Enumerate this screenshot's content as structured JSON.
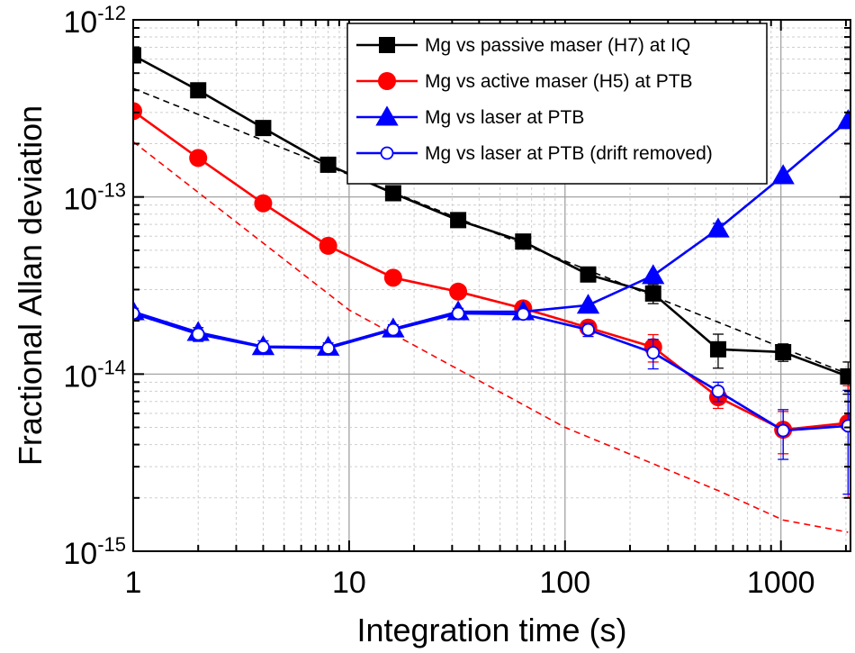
{
  "chart_data": {
    "type": "line",
    "title": "",
    "xlabel": "Integration time (s)",
    "ylabel": "Fractional Allan deviation",
    "xscale": "log",
    "yscale": "log",
    "xlim": [
      1,
      2100
    ],
    "ylim": [
      1e-15,
      1e-12
    ],
    "grid": true,
    "legend_position": "top-right",
    "x_ticks": [
      {
        "value": 1,
        "label": "1"
      },
      {
        "value": 10,
        "label": "10"
      },
      {
        "value": 100,
        "label": "100"
      },
      {
        "value": 1000,
        "label": "1000"
      }
    ],
    "y_ticks": [
      {
        "value": 1e-15,
        "base": "10",
        "exp": "-15"
      },
      {
        "value": 1e-14,
        "base": "10",
        "exp": "-14"
      },
      {
        "value": 1e-13,
        "base": "10",
        "exp": "-13"
      },
      {
        "value": 1e-12,
        "base": "10",
        "exp": "-12"
      }
    ],
    "series": [
      {
        "name": "Mg vs passive maser (H7) at IQ",
        "color": "#000000",
        "marker": "square-filled",
        "x": [
          1,
          2,
          4,
          8,
          16,
          32,
          64,
          128,
          256,
          512,
          1024,
          2048
        ],
        "y": [
          6.3e-13,
          4e-13,
          2.45e-13,
          1.52e-13,
          1.05e-13,
          7.4e-14,
          5.6e-14,
          3.65e-14,
          2.85e-14,
          1.38e-14,
          1.33e-14,
          9.7e-15
        ],
        "err": [
          0,
          0,
          0,
          0,
          0,
          0,
          0,
          0,
          3.5e-15,
          3e-15,
          1.5e-15,
          2e-15
        ]
      },
      {
        "name": "Mg vs active maser (H5) at PTB",
        "color": "#ff0000",
        "marker": "circle-filled",
        "x": [
          1,
          2,
          4,
          8,
          16,
          32,
          64,
          128,
          256,
          512,
          1024,
          2048
        ],
        "y": [
          3.05e-13,
          1.66e-13,
          9.2e-14,
          5.3e-14,
          3.5e-14,
          2.92e-14,
          2.35e-14,
          1.83e-14,
          1.42e-14,
          7.4e-15,
          4.85e-15,
          5.3e-15
        ],
        "err": [
          0,
          0,
          0,
          0,
          0,
          0,
          1e-15,
          1.5e-15,
          2.5e-15,
          1e-15,
          1.3e-15,
          3.3e-15
        ]
      },
      {
        "name": "Mg vs laser at PTB",
        "color": "#0000ff",
        "marker": "triangle-filled",
        "x": [
          1,
          2,
          4,
          8,
          16,
          32,
          64,
          128,
          256,
          512,
          1024,
          2048
        ],
        "y": [
          2.25e-14,
          1.72e-14,
          1.43e-14,
          1.42e-14,
          1.8e-14,
          2.25e-14,
          2.25e-14,
          2.45e-14,
          3.6e-14,
          6.6e-14,
          1.32e-13,
          2.7e-13
        ],
        "err": [
          0,
          0,
          0,
          0,
          0,
          0,
          0,
          0,
          0,
          5e-15,
          0,
          0
        ]
      },
      {
        "name": "Mg vs laser at PTB (drift removed)",
        "color": "#0000ff",
        "marker": "circle-open",
        "x": [
          1,
          2,
          4,
          8,
          16,
          32,
          64,
          128,
          256,
          512,
          1024,
          2048
        ],
        "y": [
          2.2e-14,
          1.68e-14,
          1.42e-14,
          1.4e-14,
          1.78e-14,
          2.2e-14,
          2.18e-14,
          1.78e-14,
          1.32e-14,
          8e-15,
          4.8e-15,
          5.1e-15
        ],
        "err": [
          1.5e-15,
          1.5e-15,
          1.2e-15,
          1e-15,
          1.2e-15,
          1.5e-15,
          1e-15,
          1.5e-15,
          2.5e-15,
          1e-15,
          1.5e-15,
          3e-15
        ]
      }
    ],
    "reference_lines": [
      {
        "color": "#000000",
        "style": "dashed",
        "x": [
          1,
          2048
        ],
        "y": [
          4.1e-13,
          1e-14
        ]
      },
      {
        "color": "#ff0000",
        "style": "dashed",
        "x": [
          1,
          10,
          100,
          512,
          1024,
          2048
        ],
        "y": [
          2.05e-13,
          2.3e-14,
          5e-15,
          2.2e-15,
          1.5e-15,
          1.28e-15
        ]
      }
    ]
  }
}
